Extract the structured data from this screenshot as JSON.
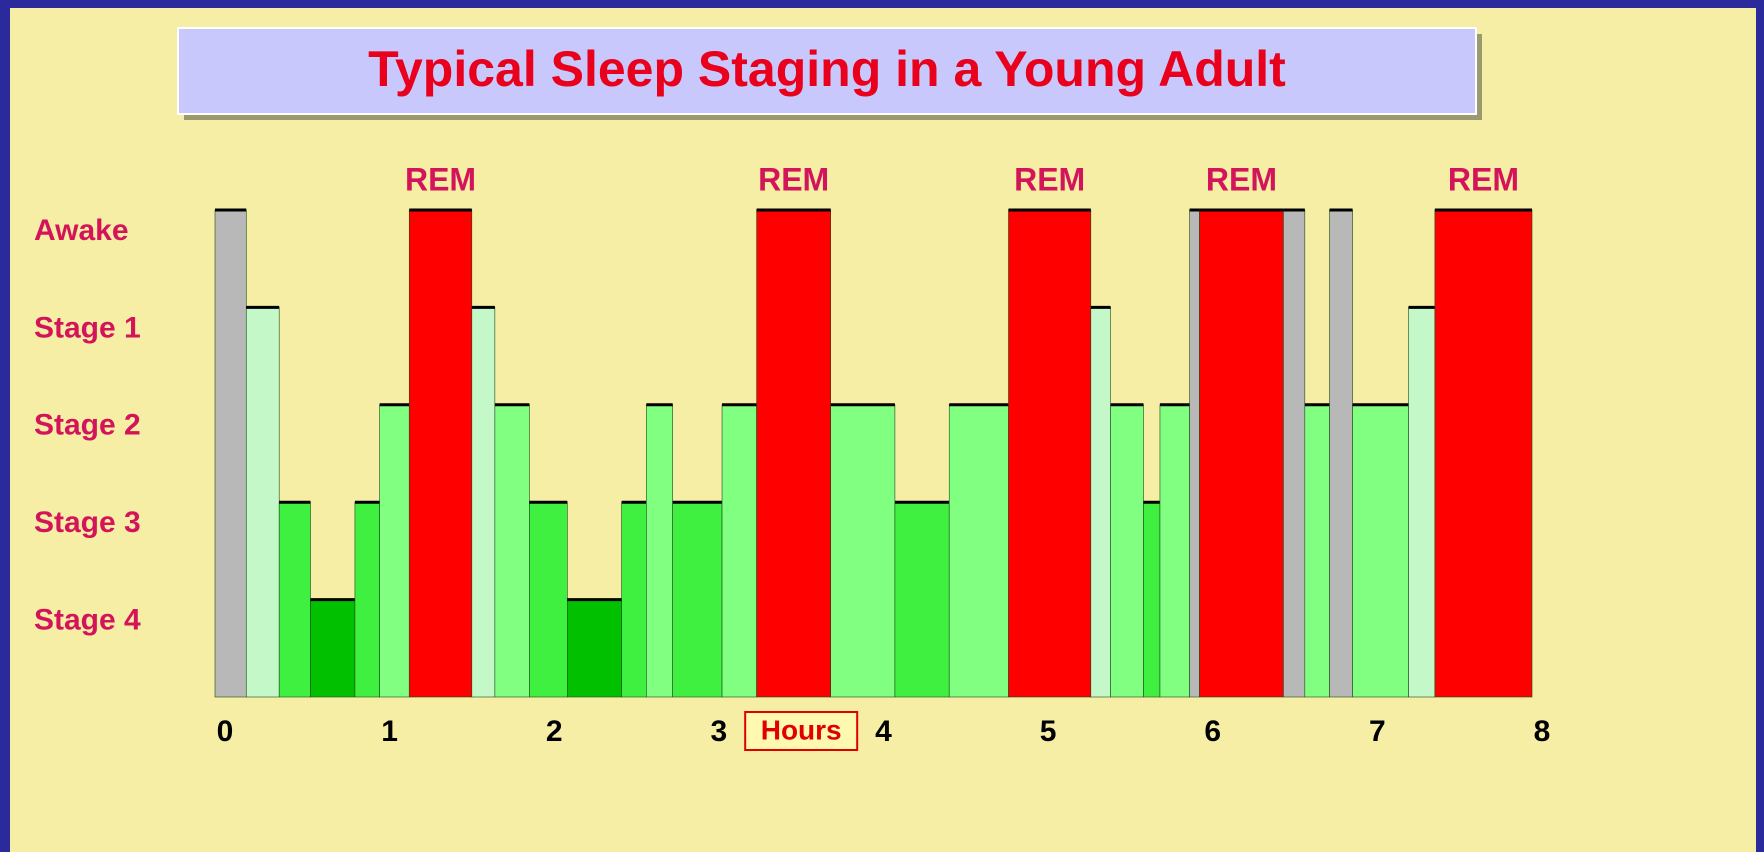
{
  "chart_data": {
    "type": "bar",
    "title": "Typical Sleep Staging in a Young Adult",
    "xlabel": "Hours",
    "xlim": [
      0,
      8
    ],
    "xticks": [
      0,
      1,
      2,
      3,
      4,
      5,
      6,
      7,
      8
    ],
    "ylim": [
      0,
      5
    ],
    "yticks": [
      {
        "value": 5,
        "label": "Awake"
      },
      {
        "value": 4,
        "label": "Stage 1"
      },
      {
        "value": 3,
        "label": "Stage 2"
      },
      {
        "value": 2,
        "label": "Stage 3"
      },
      {
        "value": 1,
        "label": "Stage 4"
      }
    ],
    "segments": [
      {
        "start": 0,
        "end": 0.19,
        "value": 5,
        "color": "#b8b8b8"
      },
      {
        "start": 0.19,
        "end": 0.39,
        "value": 4,
        "color": "#c4f8c8"
      },
      {
        "start": 0.39,
        "end": 0.58,
        "value": 2,
        "color": "#40f040"
      },
      {
        "start": 0.58,
        "end": 0.85,
        "value": 1,
        "color": "#00c000"
      },
      {
        "start": 0.85,
        "end": 1.0,
        "value": 2,
        "color": "#40f040"
      },
      {
        "start": 1.0,
        "end": 1.18,
        "value": 3,
        "color": "#80ff80"
      },
      {
        "start": 1.18,
        "end": 1.56,
        "value": 5,
        "color": "#ff0000",
        "label": "REM"
      },
      {
        "start": 1.56,
        "end": 1.7,
        "value": 4,
        "color": "#c4f8c8"
      },
      {
        "start": 1.7,
        "end": 1.91,
        "value": 3,
        "color": "#80ff80"
      },
      {
        "start": 1.91,
        "end": 2.14,
        "value": 2,
        "color": "#40f040"
      },
      {
        "start": 2.14,
        "end": 2.47,
        "value": 1,
        "color": "#00c000"
      },
      {
        "start": 2.47,
        "end": 2.62,
        "value": 2,
        "color": "#40f040"
      },
      {
        "start": 2.62,
        "end": 2.78,
        "value": 3,
        "color": "#80ff80"
      },
      {
        "start": 2.78,
        "end": 3.08,
        "value": 2,
        "color": "#40f040"
      },
      {
        "start": 3.08,
        "end": 3.29,
        "value": 3,
        "color": "#80ff80"
      },
      {
        "start": 3.29,
        "end": 3.74,
        "value": 5,
        "color": "#ff0000",
        "label": "REM"
      },
      {
        "start": 3.74,
        "end": 4.13,
        "value": 3,
        "color": "#80ff80"
      },
      {
        "start": 4.13,
        "end": 4.46,
        "value": 2,
        "color": "#40f040"
      },
      {
        "start": 4.46,
        "end": 4.82,
        "value": 3,
        "color": "#80ff80"
      },
      {
        "start": 4.82,
        "end": 5.32,
        "value": 5,
        "color": "#ff0000",
        "label": "REM"
      },
      {
        "start": 5.32,
        "end": 5.44,
        "value": 4,
        "color": "#c4f8c8"
      },
      {
        "start": 5.44,
        "end": 5.64,
        "value": 3,
        "color": "#80ff80"
      },
      {
        "start": 5.64,
        "end": 5.74,
        "value": 2,
        "color": "#40f040"
      },
      {
        "start": 5.74,
        "end": 5.92,
        "value": 3,
        "color": "#80ff80"
      },
      {
        "start": 5.92,
        "end": 5.98,
        "value": 5,
        "color": "#b8b8b8"
      },
      {
        "start": 5.98,
        "end": 6.49,
        "value": 5,
        "color": "#ff0000",
        "label": "REM"
      },
      {
        "start": 6.49,
        "end": 6.62,
        "value": 5,
        "color": "#b8b8b8"
      },
      {
        "start": 6.62,
        "end": 6.77,
        "value": 3,
        "color": "#80ff80"
      },
      {
        "start": 6.77,
        "end": 6.91,
        "value": 5,
        "color": "#b8b8b8"
      },
      {
        "start": 6.91,
        "end": 7.25,
        "value": 3,
        "color": "#80ff80"
      },
      {
        "start": 7.25,
        "end": 7.41,
        "value": 4,
        "color": "#c4f8c8"
      },
      {
        "start": 7.41,
        "end": 8.0,
        "value": 5,
        "color": "#ff0000",
        "label": "REM"
      }
    ]
  }
}
